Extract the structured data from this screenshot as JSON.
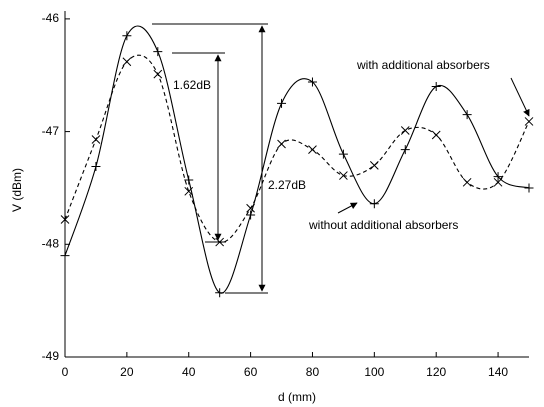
{
  "chart_data": {
    "type": "line",
    "x_label": "d (mm)",
    "y_label": "V (dBm)",
    "x": [
      0,
      10,
      20,
      30,
      40,
      50,
      60,
      70,
      80,
      90,
      100,
      110,
      120,
      130,
      140,
      150
    ],
    "series": [
      {
        "name": "with additional absorbers",
        "color": "#000000",
        "marker": "+",
        "dashed": false,
        "values": [
          -48.1,
          -47.31,
          -46.15,
          -46.29,
          -47.43,
          -48.43,
          -47.74,
          -46.75,
          -46.56,
          -47.2,
          -47.64,
          -47.16,
          -46.6,
          -46.85,
          -47.4,
          -47.5
        ]
      },
      {
        "name": "without additional absorbers",
        "color": "#000000",
        "marker": "x",
        "dashed": true,
        "values": [
          -47.78,
          -47.07,
          -46.38,
          -46.49,
          -47.53,
          -47.98,
          -47.68,
          -47.11,
          -47.16,
          -47.39,
          -47.3,
          -46.99,
          -47.03,
          -47.45,
          -47.45,
          -46.91
        ]
      }
    ],
    "annotations": [
      "1.62dB",
      "2.27dB"
    ],
    "xlim": [
      0,
      150
    ],
    "xticks": [
      0,
      20,
      40,
      60,
      80,
      100,
      120,
      140
    ],
    "ylim": [
      -49,
      -45.93
    ],
    "yticks": [
      -49,
      -48,
      -47,
      -46
    ],
    "grid": false
  }
}
